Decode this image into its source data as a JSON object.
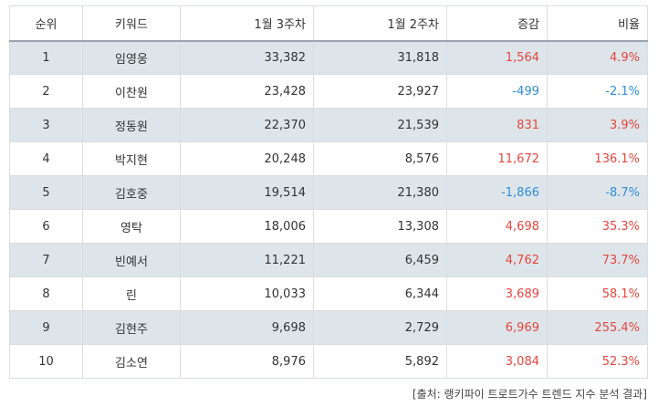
{
  "colors": {
    "up": "#e8453c",
    "down": "#2f8ed8",
    "shaded_row": "#dde5ea"
  },
  "table": {
    "headers": {
      "rank": "순위",
      "keyword": "키워드",
      "week3": "1월 3주차",
      "week2": "1월 2주차",
      "diff": "증감",
      "ratio": "비율"
    },
    "rows": [
      {
        "rank": "1",
        "keyword": "임영웅",
        "week3": "33,382",
        "week2": "31,818",
        "diff": "1,564",
        "ratio": "4.9%",
        "trend": "up"
      },
      {
        "rank": "2",
        "keyword": "이찬원",
        "week3": "23,428",
        "week2": "23,927",
        "diff": "-499",
        "ratio": "-2.1%",
        "trend": "down"
      },
      {
        "rank": "3",
        "keyword": "정동원",
        "week3": "22,370",
        "week2": "21,539",
        "diff": "831",
        "ratio": "3.9%",
        "trend": "up"
      },
      {
        "rank": "4",
        "keyword": "박지현",
        "week3": "20,248",
        "week2": "8,576",
        "diff": "11,672",
        "ratio": "136.1%",
        "trend": "up"
      },
      {
        "rank": "5",
        "keyword": "김호중",
        "week3": "19,514",
        "week2": "21,380",
        "diff": "-1,866",
        "ratio": "-8.7%",
        "trend": "down"
      },
      {
        "rank": "6",
        "keyword": "영탁",
        "week3": "18,006",
        "week2": "13,308",
        "diff": "4,698",
        "ratio": "35.3%",
        "trend": "up"
      },
      {
        "rank": "7",
        "keyword": "빈예서",
        "week3": "11,221",
        "week2": "6,459",
        "diff": "4,762",
        "ratio": "73.7%",
        "trend": "up"
      },
      {
        "rank": "8",
        "keyword": "린",
        "week3": "10,033",
        "week2": "6,344",
        "diff": "3,689",
        "ratio": "58.1%",
        "trend": "up"
      },
      {
        "rank": "9",
        "keyword": "김현주",
        "week3": "9,698",
        "week2": "2,729",
        "diff": "6,969",
        "ratio": "255.4%",
        "trend": "up"
      },
      {
        "rank": "10",
        "keyword": "김소연",
        "week3": "8,976",
        "week2": "5,892",
        "diff": "3,084",
        "ratio": "52.3%",
        "trend": "up"
      }
    ]
  },
  "source": "[출처: 랭키파이 트로트가수 트렌드 지수 분석 결과]"
}
